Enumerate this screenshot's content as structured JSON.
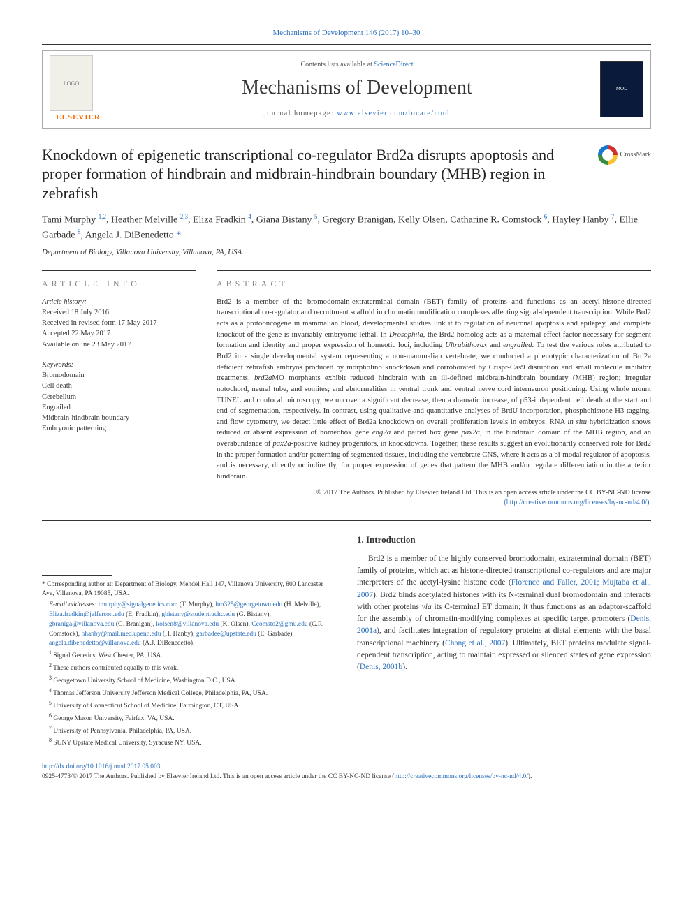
{
  "top_citation": "Mechanisms of Development 146 (2017) 10–30",
  "header": {
    "contents_text": "Contents lists available at ",
    "contents_link": "ScienceDirect",
    "journal_title": "Mechanisms of Development",
    "homepage_label": "journal homepage: ",
    "homepage_url": "www.elsevier.com/locate/mod",
    "publisher_wordmark": "ELSEVIER"
  },
  "crossmark_label": "CrossMark",
  "colors": {
    "link": "#2a6ebb",
    "elsevier_orange": "#ff6c00",
    "body_text": "#333333",
    "rule": "#333333"
  },
  "article": {
    "title": "Knockdown of epigenetic transcriptional co-regulator Brd2a disrupts apoptosis and proper formation of hindbrain and midbrain-hindbrain boundary (MHB) region in zebrafish",
    "authors_html": "Tami Murphy <sup>1,2</sup>, Heather Melville <sup>2,3</sup>, Eliza Fradkin <sup>4</sup>, Giana Bistany <sup>5</sup>, Gregory Branigan, Kelly Olsen, Catharine R. Comstock <sup>6</sup>, Hayley Hanby <sup>7</sup>, Ellie Garbade <sup>8</sup>, Angela J. DiBenedetto <span class='star'>*</span>",
    "affiliation": "Department of Biology, Villanova University, Villanova, PA, USA"
  },
  "meta": {
    "info_head": "article info",
    "history_hd": "Article history:",
    "history": "Received 18 July 2016\nReceived in revised form 17 May 2017\nAccepted 22 May 2017\nAvailable online 23 May 2017",
    "keywords_hd": "Keywords:",
    "keywords": [
      "Bromodomain",
      "Cell death",
      "Cerebellum",
      "Engrailed",
      "Midbrain-hindbrain boundary",
      "Embryonic patterning"
    ]
  },
  "abstract": {
    "head": "abstract",
    "text": "Brd2 is a member of the bromodomain-extraterminal domain (BET) family of proteins and functions as an acetyl-histone-directed transcriptional co-regulator and recruitment scaffold in chromatin modification complexes affecting signal-dependent transcription. While Brd2 acts as a protooncogene in mammalian blood, developmental studies link it to regulation of neuronal apoptosis and epilepsy, and complete knockout of the gene is invariably embryonic lethal. In Drosophila, the Brd2 homolog acts as a maternal effect factor necessary for segment formation and identity and proper expression of homeotic loci, including Ultrabithorax and engrailed. To test the various roles attributed to Brd2 in a single developmental system representing a non-mammalian vertebrate, we conducted a phenotypic characterization of Brd2a deficient zebrafish embryos produced by morpholino knockdown and corroborated by Crispr-Cas9 disruption and small molecule inhibitor treatments. brd2aMO morphants exhibit reduced hindbrain with an ill-defined midbrain-hindbrain boundary (MHB) region; irregular notochord, neural tube, and somites; and abnormalities in ventral trunk and ventral nerve cord interneuron positioning. Using whole mount TUNEL and confocal microscopy, we uncover a significant decrease, then a dramatic increase, of p53-independent cell death at the start and end of segmentation, respectively. In contrast, using qualitative and quantitative analyses of BrdU incorporation, phosphohistone H3-tagging, and flow cytometry, we detect little effect of Brd2a knockdown on overall proliferation levels in embryos. RNA in situ hybridization shows reduced or absent expression of homeobox gene eng2a and paired box gene pax2a, in the hindbrain domain of the MHB region, and an overabundance of pax2a-positive kidney progenitors, in knockdowns. Together, these results suggest an evolutionarily conserved role for Brd2 in the proper formation and/or patterning of segmented tissues, including the vertebrate CNS, where it acts as a bi-modal regulator of apoptosis, and is necessary, directly or indirectly, for proper expression of genes that pattern the MHB and/or regulate differentiation in the anterior hindbrain.",
    "copyright": "© 2017 The Authors. Published by Elsevier Ireland Ltd. This is an open access article under the CC BY-NC-ND license",
    "license_url": "(http://creativecommons.org/licenses/by-nc-nd/4.0/)."
  },
  "footnotes": {
    "corr": "* Corresponding author at: Department of Biology, Mendel Hall 147, Villanova University, 800 Lancaster Ave, Villanova, PA 19085, USA.",
    "email_label": "E-mail addresses: ",
    "emails": [
      {
        "e": "tmurphy@signalgenetics.com",
        "n": "(T. Murphy),"
      },
      {
        "e": "hm325@georgetown.edu",
        "n": "(H. Melville),"
      },
      {
        "e": "Eliza.fradkin@jefferson.edu",
        "n": "(E. Fradkin),"
      },
      {
        "e": "gbistany@student.uchc.edu",
        "n": "(G. Bistany),"
      },
      {
        "e": "gbraniga@villanova.edu",
        "n": "(G. Branigan),"
      },
      {
        "e": "kolsen8@villanova.edu",
        "n": "(K. Olsen),"
      },
      {
        "e": "Ccomsto2@gmu.edu",
        "n": "(C.R. Comstock),"
      },
      {
        "e": "hhanby@mail.med.upenn.edu",
        "n": "(H. Hanby),"
      },
      {
        "e": "garbadee@upstate.edu",
        "n": "(E. Garbade),"
      },
      {
        "e": "angela.dibenedetto@villanova.edu",
        "n": "(A.J. DiBenedetto)."
      }
    ],
    "notes": [
      "Signal Genetics, West Chester, PA, USA.",
      "These authors contributed equally to this work.",
      "Georgetown University School of Medicine, Washington D.C., USA.",
      "Thomas Jefferson University Jefferson Medical College, Philadelphia, PA, USA.",
      "University of Connecticut School of Medicine, Farmington, CT, USA.",
      "George Mason University, Fairfax, VA, USA.",
      "University of Pennsylvania, Philadelphia, PA, USA.",
      "SUNY Upstate Medical University, Syracuse NY, USA."
    ]
  },
  "intro": {
    "head": "1. Introduction",
    "para": "Brd2 is a member of the highly conserved bromodomain, extraterminal domain (BET) family of proteins, which act as histone-directed transcriptional co-regulators and are major interpreters of the acetyl-lysine histone code (Florence and Faller, 2001; Mujtaba et al., 2007). Brd2 binds acetylated histones with its N-terminal dual bromodomain and interacts with other proteins via its C-terminal ET domain; it thus functions as an adaptor-scaffold for the assembly of chromatin-modifying complexes at specific target promoters (Denis, 2001a), and facilitates integration of regulatory proteins at distal elements with the basal transcriptional machinery (Chang et al., 2007). Ultimately, BET proteins modulate signal-dependent transcription, acting to maintain expressed or silenced states of gene expression (Denis, 2001b)."
  },
  "footer": {
    "doi": "http://dx.doi.org/10.1016/j.mod.2017.05.003",
    "issn_line": "0925-4773/© 2017 The Authors. Published by Elsevier Ireland Ltd. This is an open access article under the CC BY-NC-ND license (",
    "issn_url": "http://creativecommons.org/licenses/by-nc-nd/4.0/",
    "issn_close": ")."
  }
}
